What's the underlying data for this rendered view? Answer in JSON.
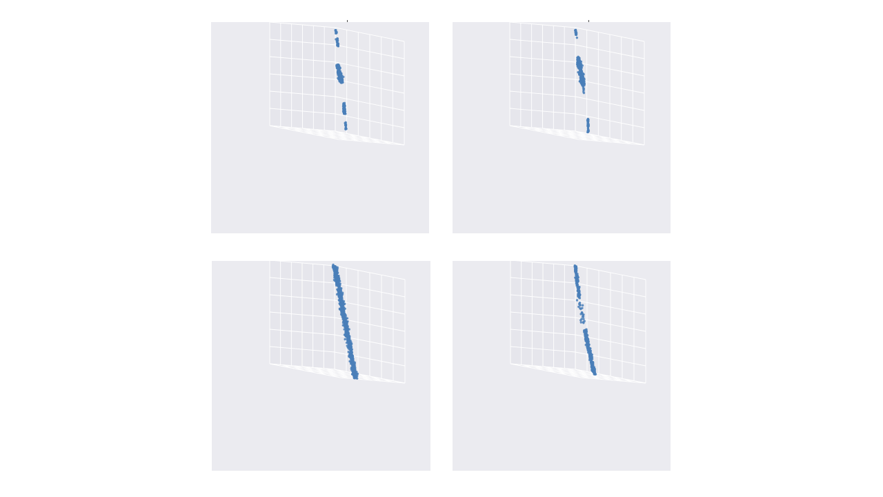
{
  "page": {
    "background": "#ffffff",
    "panel_background": "#ebebf0",
    "grid_color": "#ffffff",
    "point_color": "#4a7fb8"
  },
  "chart_data": [
    {
      "type": "scatter",
      "projection": "3d",
      "title": "",
      "grid": true,
      "color": "#4a7fb8",
      "clusters": [
        {
          "from": [
            0.0,
            0.0,
            0.98
          ],
          "to": [
            0.04,
            0.02,
            0.94
          ],
          "spread": 0.012,
          "count": 12
        },
        {
          "from": [
            0.05,
            0.03,
            0.9
          ],
          "to": [
            0.09,
            0.05,
            0.83
          ],
          "spread": 0.012,
          "count": 28
        },
        {
          "from": [
            0.15,
            0.12,
            0.65
          ],
          "to": [
            0.3,
            0.22,
            0.5
          ],
          "spread": 0.03,
          "count": 220
        },
        {
          "from": [
            0.55,
            0.45,
            0.32
          ],
          "to": [
            0.58,
            0.47,
            0.22
          ],
          "spread": 0.014,
          "count": 90
        },
        {
          "from": [
            0.63,
            0.51,
            0.14
          ],
          "to": [
            0.66,
            0.53,
            0.08
          ],
          "spread": 0.01,
          "count": 22
        }
      ]
    },
    {
      "type": "scatter",
      "projection": "3d",
      "title": "",
      "grid": true,
      "color": "#4a7fb8",
      "clusters": [
        {
          "from": [
            0.0,
            0.0,
            0.98
          ],
          "to": [
            0.04,
            0.02,
            0.91
          ],
          "spread": 0.01,
          "count": 20
        },
        {
          "from": [
            0.14,
            0.1,
            0.72
          ],
          "to": [
            0.3,
            0.2,
            0.47
          ],
          "spread": 0.03,
          "count": 260
        },
        {
          "from": [
            0.31,
            0.21,
            0.46
          ],
          "to": [
            0.33,
            0.22,
            0.4
          ],
          "spread": 0.012,
          "count": 6
        },
        {
          "from": [
            0.64,
            0.48,
            0.18
          ],
          "to": [
            0.66,
            0.5,
            0.1
          ],
          "spread": 0.01,
          "count": 40
        },
        {
          "from": [
            0.67,
            0.51,
            0.09
          ],
          "to": [
            0.68,
            0.52,
            0.05
          ],
          "spread": 0.008,
          "count": 14
        }
      ]
    },
    {
      "type": "scatter",
      "projection": "3d",
      "title": "",
      "grid": true,
      "color": "#4a7fb8",
      "clusters": [
        {
          "from": [
            0.0,
            0.0,
            1.0
          ],
          "to": [
            0.85,
            0.6,
            0.0
          ],
          "spread": 0.035,
          "count": 900
        }
      ]
    },
    {
      "type": "scatter",
      "projection": "3d",
      "title": "",
      "grid": true,
      "color": "#4a7fb8",
      "clusters": [
        {
          "from": [
            0.0,
            0.0,
            1.0
          ],
          "to": [
            0.15,
            0.1,
            0.7
          ],
          "spread": 0.018,
          "count": 140
        },
        {
          "from": [
            0.16,
            0.11,
            0.68
          ],
          "to": [
            0.32,
            0.22,
            0.48
          ],
          "spread": 0.04,
          "count": 25
        },
        {
          "from": [
            0.38,
            0.27,
            0.42
          ],
          "to": [
            0.75,
            0.52,
            0.02
          ],
          "spread": 0.025,
          "count": 260
        }
      ]
    }
  ]
}
